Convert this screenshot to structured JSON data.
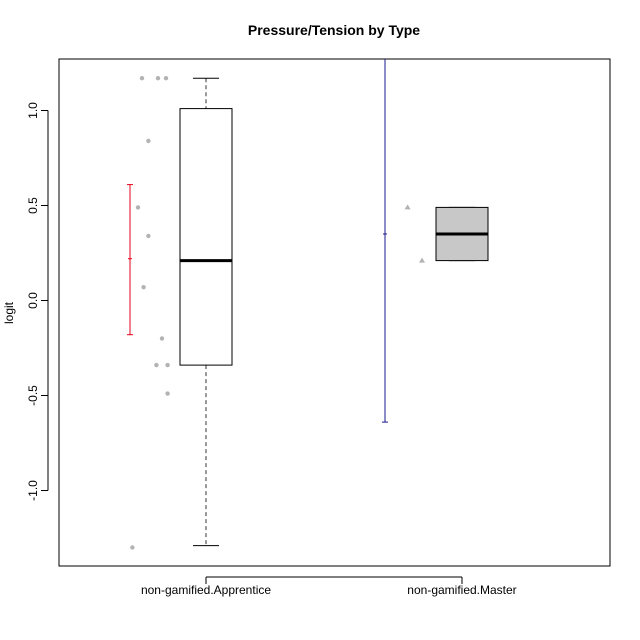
{
  "chart_data": {
    "type": "boxplot",
    "title": "Pressure/Tension by Type",
    "xlabel": "",
    "ylabel": "logit",
    "ylim": [
      -1.4,
      1.27
    ],
    "yticks": [
      1.0,
      0.5,
      0.0,
      -0.5,
      -1.0
    ],
    "ytick_labels": [
      "1.0",
      "0.5",
      "0.0",
      "-0.5",
      "-1.0"
    ],
    "grid": false,
    "legend": "none",
    "categories": [
      "non-gamified.Apprentice",
      "non-gamified.Master"
    ],
    "boxes": [
      {
        "name": "non-gamified.Apprentice",
        "whisker_low": -1.29,
        "q1": -0.34,
        "median": 0.21,
        "q3": 1.01,
        "whisker_high": 1.17,
        "fill": "#ffffff"
      },
      {
        "name": "non-gamified.Master",
        "whisker_low": 0.21,
        "q1": 0.21,
        "median": 0.35,
        "q3": 0.49,
        "whisker_high": 0.49,
        "fill": "#c8c8c8"
      }
    ],
    "error_bars": [
      {
        "name": "non-gamified.Apprentice",
        "mean": 0.22,
        "low": -0.18,
        "high": 0.61,
        "color": "#e4001b"
      },
      {
        "name": "non-gamified.Master",
        "mean": 0.35,
        "low": -0.64,
        "high": 1.34,
        "color": "#1a1a8c"
      }
    ],
    "points": [
      {
        "group": 0,
        "offset": -0.8,
        "y": 1.17,
        "shape": "circle"
      },
      {
        "group": 0,
        "offset": -0.6,
        "y": 1.17,
        "shape": "circle"
      },
      {
        "group": 0,
        "offset": -0.5,
        "y": 1.17,
        "shape": "circle"
      },
      {
        "group": 0,
        "offset": -0.72,
        "y": 0.84,
        "shape": "circle"
      },
      {
        "group": 0,
        "offset": -0.85,
        "y": 0.49,
        "shape": "circle"
      },
      {
        "group": 0,
        "offset": -0.72,
        "y": 0.34,
        "shape": "circle"
      },
      {
        "group": 0,
        "offset": -0.78,
        "y": 0.07,
        "shape": "circle"
      },
      {
        "group": 0,
        "offset": -0.55,
        "y": -0.2,
        "shape": "circle"
      },
      {
        "group": 0,
        "offset": -0.62,
        "y": -0.34,
        "shape": "circle"
      },
      {
        "group": 0,
        "offset": -0.48,
        "y": -0.34,
        "shape": "circle"
      },
      {
        "group": 0,
        "offset": -0.48,
        "y": -0.49,
        "shape": "circle"
      },
      {
        "group": 0,
        "offset": -0.92,
        "y": -1.3,
        "shape": "circle"
      },
      {
        "group": 1,
        "offset": -0.68,
        "y": 0.49,
        "shape": "triangle"
      },
      {
        "group": 1,
        "offset": -0.5,
        "y": 0.21,
        "shape": "triangle"
      }
    ],
    "colors": {
      "point": "#b3b3b3",
      "box_border": "#000000",
      "whisker": "#555555",
      "median": "#000000",
      "frame": "#000000"
    }
  }
}
